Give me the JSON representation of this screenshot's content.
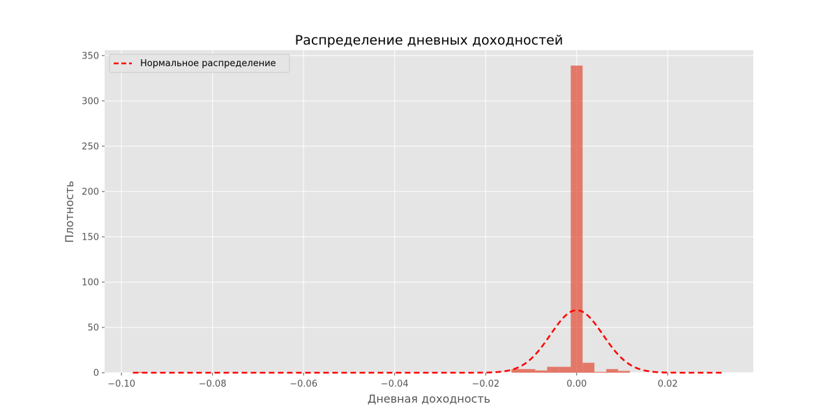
{
  "chart_data": {
    "type": "bar",
    "title": "Распределение дневных доходностей",
    "xlabel": "Дневная доходность",
    "ylabel": "Плотность",
    "xlim": [
      -0.1037,
      0.0388
    ],
    "ylim": [
      0,
      356
    ],
    "x_ticks": [
      -0.1,
      -0.08,
      -0.06,
      -0.04,
      -0.02,
      0.0,
      0.02
    ],
    "x_tick_labels": [
      "−0.10",
      "−0.08",
      "−0.06",
      "−0.04",
      "−0.02",
      "0.00",
      "0.02"
    ],
    "y_ticks": [
      0,
      50,
      100,
      150,
      200,
      250,
      300,
      350
    ],
    "y_tick_labels": [
      "0",
      "50",
      "100",
      "150",
      "200",
      "250",
      "300",
      "350"
    ],
    "grid": true,
    "legend_position": "top-left",
    "colors": {
      "histogram": "#e24a33",
      "normal_curve": "#ff0000",
      "plot_background": "#e5e5e5",
      "grid": "#ffffff"
    },
    "histogram": {
      "bin_width": 0.0026,
      "bins": [
        {
          "x0": -0.0975,
          "density": 0.9
        },
        {
          "x0": -0.0143,
          "density": 4.0
        },
        {
          "x0": -0.0117,
          "density": 4.0
        },
        {
          "x0": -0.0091,
          "density": 2.5
        },
        {
          "x0": -0.0065,
          "density": 6.5
        },
        {
          "x0": -0.0039,
          "density": 6.5
        },
        {
          "x0": -0.0013,
          "density": 339.0
        },
        {
          "x0": 0.0013,
          "density": 11.0
        },
        {
          "x0": 0.0039,
          "density": 0.9
        },
        {
          "x0": 0.0065,
          "density": 4.0
        },
        {
          "x0": 0.0091,
          "density": 2.0
        }
      ]
    },
    "normal_curve": {
      "name": "Нормальное распределение",
      "mean": 0.0,
      "peak_density": 69.0,
      "x_range": [
        -0.0975,
        0.0325
      ]
    }
  }
}
